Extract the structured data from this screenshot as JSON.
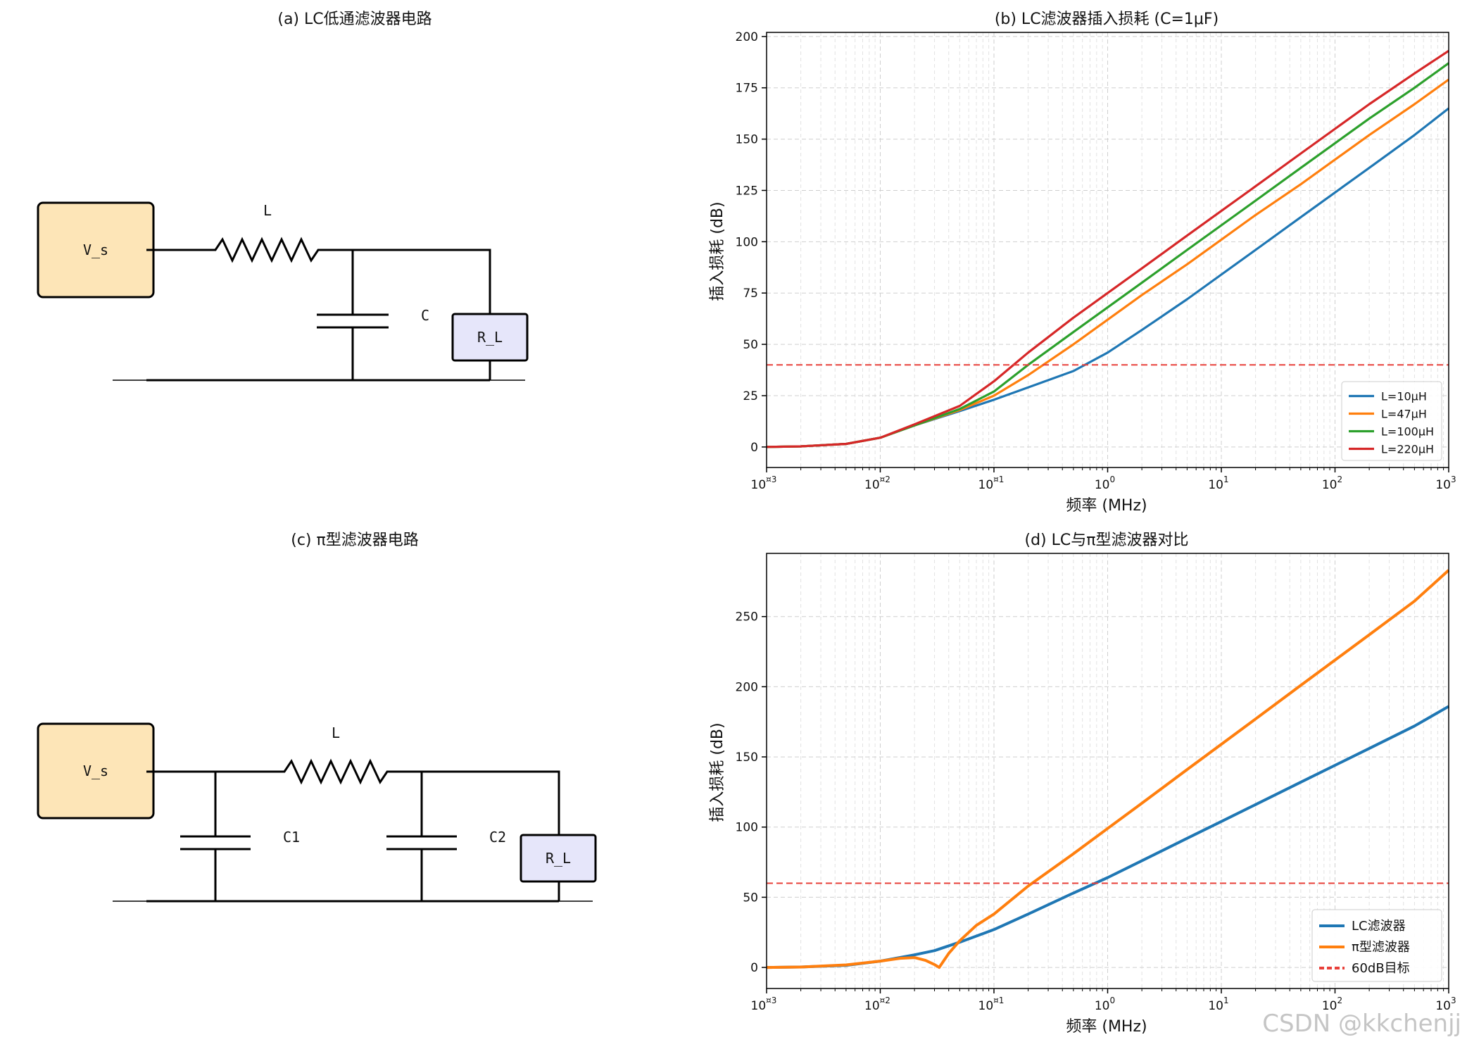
{
  "panels": {
    "a": {
      "title": "(a) LC低通滤波器电路",
      "source": "V_s",
      "inductor": "L",
      "capacitor": "C",
      "load": "R_L"
    },
    "c": {
      "title": "(c) π型滤波器电路",
      "source": "V_s",
      "inductor": "L",
      "capacitor1": "C1",
      "capacitor2": "C2",
      "load": "R_L"
    }
  },
  "colors": {
    "source_fill": "#fde5b7",
    "load_fill": "#e6e6fa",
    "blue": "#1f77b4",
    "orange": "#ff7f0e",
    "green": "#2ca02c",
    "red": "#d62728",
    "threshold": "#e8403a"
  },
  "watermark": "CSDN @kkchenjj",
  "chart_data": [
    {
      "id": "b",
      "type": "line",
      "title": "(b) LC滤波器插入损耗 (C=1μF)",
      "xlabel": "频率 (MHz)",
      "ylabel": "插入损耗 (dB)",
      "xscale": "log",
      "xlim": [
        0.001,
        1000
      ],
      "ylim": [
        -10,
        202
      ],
      "yticks": [
        0,
        25,
        50,
        75,
        100,
        125,
        150,
        175,
        200
      ],
      "xticks": [
        0.001,
        0.01,
        0.1,
        1,
        10,
        100,
        1000
      ],
      "xtick_labels": [
        {
          "base": "10",
          "exp": "¤3"
        },
        {
          "base": "10",
          "exp": "¤2"
        },
        {
          "base": "10",
          "exp": "¤1"
        },
        {
          "base": "10",
          "exp": "0"
        },
        {
          "base": "10",
          "exp": "1"
        },
        {
          "base": "10",
          "exp": "2"
        },
        {
          "base": "10",
          "exp": "3"
        }
      ],
      "grid": true,
      "legend_position": "lower-right",
      "threshold": {
        "y": 40
      },
      "series": [
        {
          "name": "L=10μH",
          "color": "#1f77b4",
          "x": [
            0.001,
            0.002,
            0.005,
            0.01,
            0.02,
            0.05,
            0.1,
            0.2,
            0.5,
            1,
            2,
            5,
            10,
            20,
            50,
            100,
            200,
            500,
            1000
          ],
          "y": [
            0,
            0.3,
            1.5,
            4.5,
            10.5,
            17.5,
            23,
            29,
            37,
            46,
            57,
            72,
            84,
            96,
            112,
            124,
            136,
            152,
            165
          ]
        },
        {
          "name": "L=47μH",
          "color": "#ff7f0e",
          "x": [
            0.001,
            0.002,
            0.005,
            0.01,
            0.02,
            0.05,
            0.1,
            0.2,
            0.5,
            1,
            2,
            5,
            10,
            20,
            50,
            100,
            200,
            500,
            1000
          ],
          "y": [
            0,
            0.3,
            1.5,
            4.5,
            10.5,
            18,
            25,
            35,
            50,
            62,
            74,
            89,
            101,
            113,
            128,
            140,
            152,
            167,
            179
          ]
        },
        {
          "name": "L=100μH",
          "color": "#2ca02c",
          "x": [
            0.001,
            0.002,
            0.005,
            0.01,
            0.02,
            0.05,
            0.1,
            0.2,
            0.5,
            1,
            2,
            5,
            10,
            20,
            50,
            100,
            200,
            500,
            1000
          ],
          "y": [
            0,
            0.3,
            1.5,
            4.5,
            10.5,
            18.5,
            27,
            40,
            56,
            68,
            80,
            96,
            108,
            120,
            136,
            148,
            160,
            175,
            187
          ]
        },
        {
          "name": "L=220μH",
          "color": "#d62728",
          "x": [
            0.001,
            0.002,
            0.005,
            0.01,
            0.02,
            0.05,
            0.1,
            0.2,
            0.5,
            1,
            2,
            5,
            10,
            20,
            50,
            100,
            200,
            500,
            1000
          ],
          "y": [
            0,
            0.3,
            1.5,
            4.5,
            11,
            20,
            32,
            46,
            63,
            75,
            87,
            103,
            115,
            127,
            143,
            155,
            167,
            182,
            193
          ]
        }
      ]
    },
    {
      "id": "d",
      "type": "line",
      "title": "(d) LC与π型滤波器对比",
      "xlabel": "频率 (MHz)",
      "ylabel": "插入损耗 (dB)",
      "xscale": "log",
      "xlim": [
        0.001,
        1000
      ],
      "ylim": [
        -15,
        295
      ],
      "yticks": [
        0,
        50,
        100,
        150,
        200,
        250
      ],
      "xticks": [
        0.001,
        0.01,
        0.1,
        1,
        10,
        100,
        1000
      ],
      "xtick_labels": [
        {
          "base": "10",
          "exp": "¤3"
        },
        {
          "base": "10",
          "exp": "¤2"
        },
        {
          "base": "10",
          "exp": "¤1"
        },
        {
          "base": "10",
          "exp": "0"
        },
        {
          "base": "10",
          "exp": "1"
        },
        {
          "base": "10",
          "exp": "2"
        },
        {
          "base": "10",
          "exp": "3"
        }
      ],
      "grid": true,
      "legend_position": "lower-right",
      "threshold": {
        "y": 60
      },
      "series": [
        {
          "name": "LC滤波器",
          "color": "#1f77b4",
          "x": [
            0.001,
            0.002,
            0.005,
            0.01,
            0.02,
            0.03,
            0.05,
            0.1,
            0.2,
            0.5,
            1,
            2,
            5,
            10,
            20,
            50,
            100,
            200,
            500,
            1000
          ],
          "y": [
            0,
            0.3,
            1.5,
            4.5,
            9,
            12,
            18,
            27,
            38,
            53,
            64,
            76,
            92,
            104,
            116,
            132,
            144,
            156,
            172,
            186
          ]
        },
        {
          "name": "π型滤波器",
          "color": "#ff7f0e",
          "x": [
            0.001,
            0.002,
            0.005,
            0.01,
            0.015,
            0.02,
            0.025,
            0.03,
            0.033,
            0.04,
            0.05,
            0.07,
            0.1,
            0.2,
            0.5,
            1,
            2,
            5,
            10,
            20,
            50,
            100,
            200,
            500,
            1000
          ],
          "y": [
            0,
            0.3,
            1.8,
            4.5,
            6.5,
            7,
            5,
            2,
            0,
            10,
            19,
            30,
            38,
            58,
            81,
            99,
            117,
            141,
            159,
            177,
            201,
            219,
            237,
            261,
            283
          ]
        }
      ],
      "threshold_name": "60dB目标"
    }
  ]
}
